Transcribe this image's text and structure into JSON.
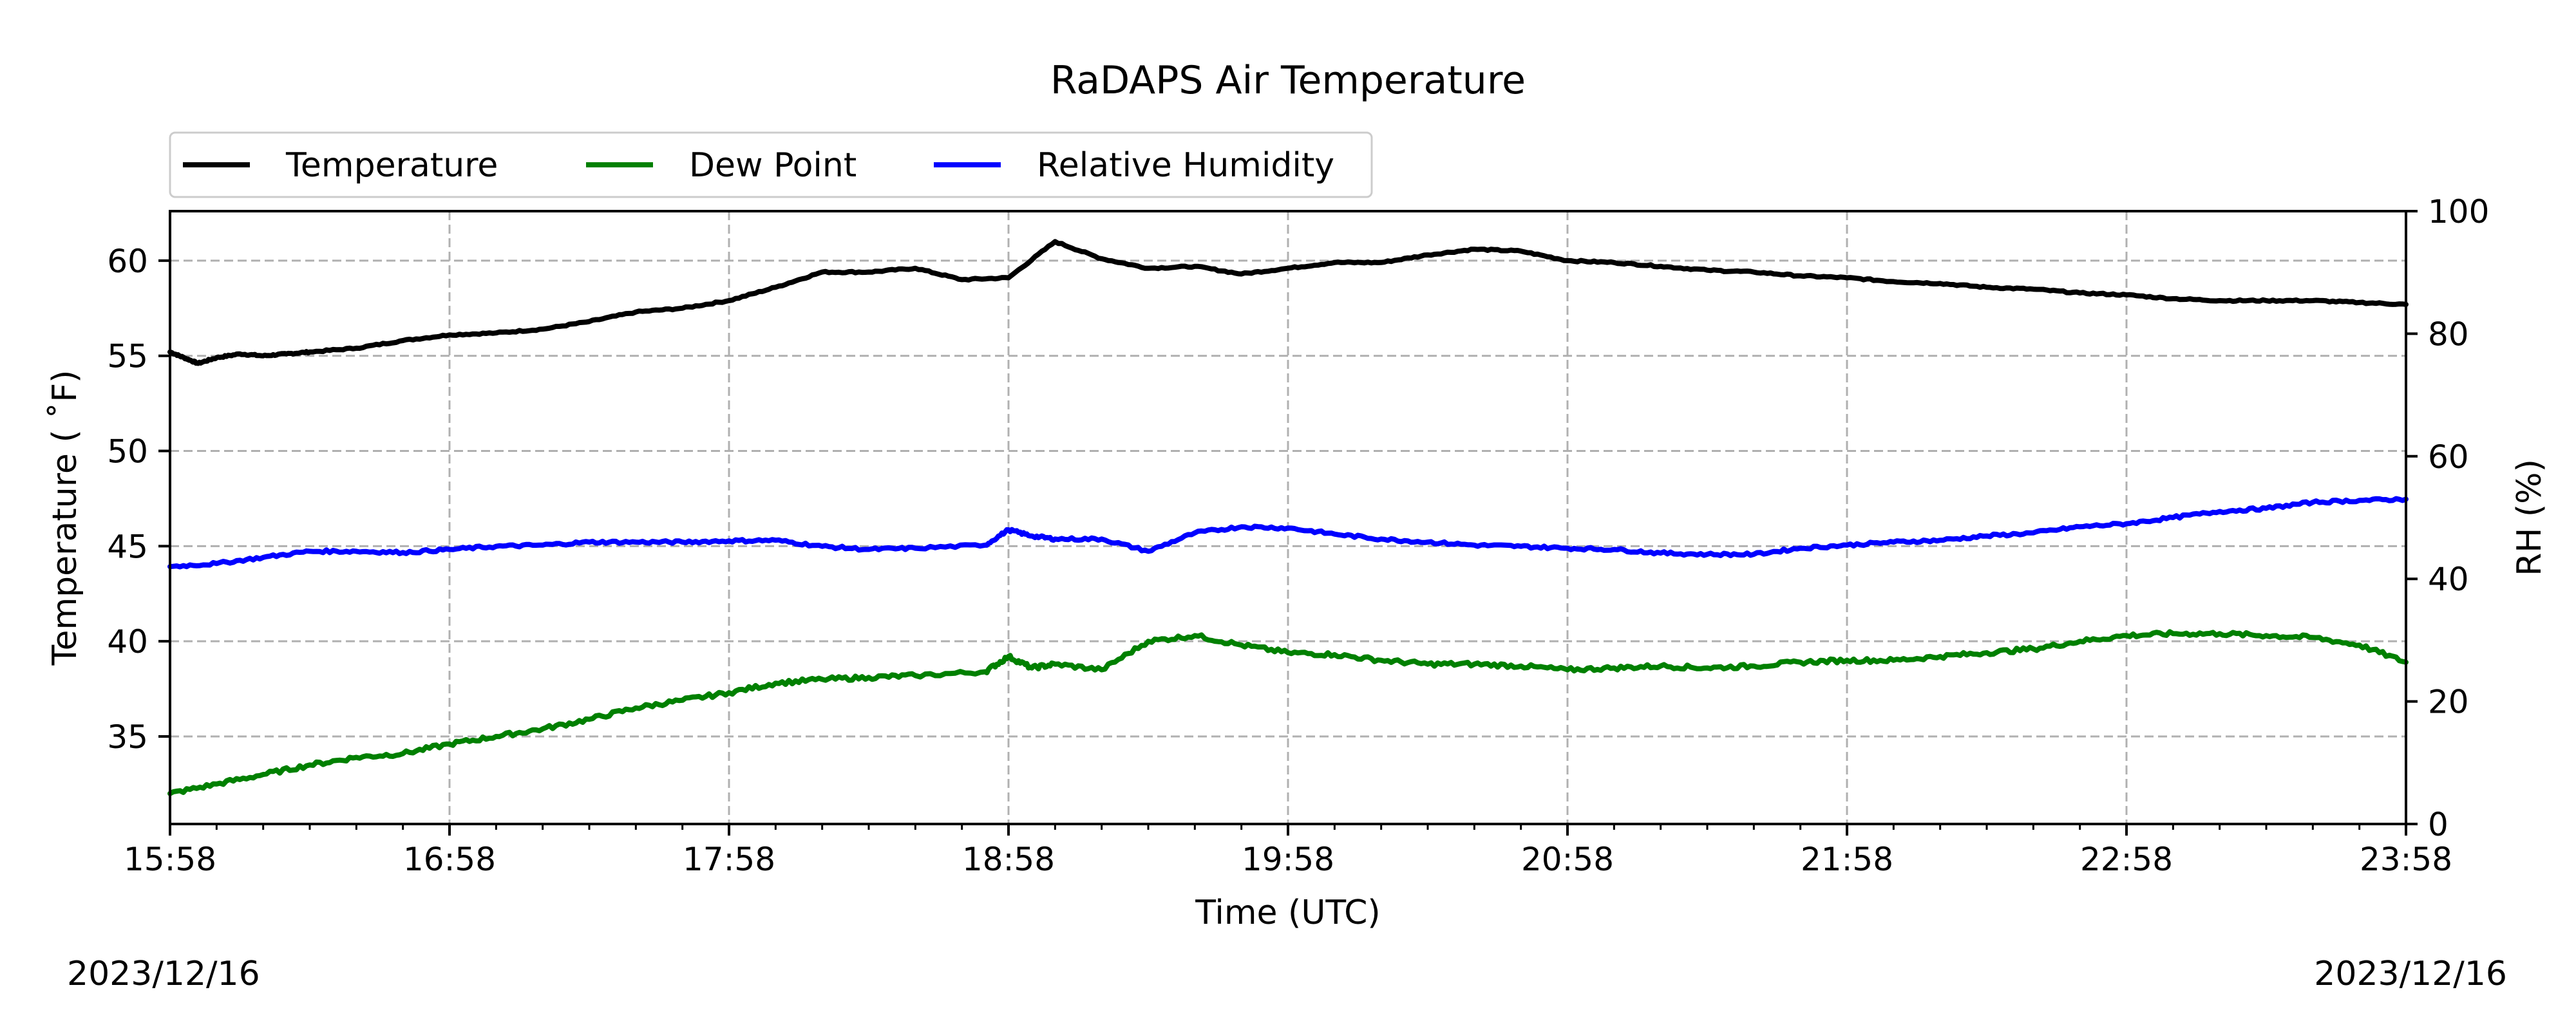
{
  "chart_data": {
    "type": "line",
    "title": "RaDAPS Air Temperature",
    "xlabel": "Time (UTC)",
    "ylabel_left": "Temperature ($^\\circ$F)",
    "ylabel_left_display": "Temperature ( ˚F)",
    "ylabel_right": "RH (%)",
    "x_ticks": [
      "15:58",
      "16:58",
      "17:58",
      "18:58",
      "19:58",
      "20:58",
      "21:58",
      "22:58",
      "23:58"
    ],
    "x_range_minutes": [
      0,
      480
    ],
    "y_left_ticks": [
      35,
      40,
      45,
      50,
      55,
      60
    ],
    "y_left_lim": [
      30.4,
      62.6
    ],
    "y_right_ticks": [
      0,
      20,
      40,
      60,
      80,
      100
    ],
    "y_right_lim": [
      0,
      100
    ],
    "grid": true,
    "legend_position": "top-left, above plot",
    "date_left": "2023/12/16",
    "date_right": "2023/12/16",
    "series": [
      {
        "name": "Temperature",
        "color": "#000000",
        "axis": "left",
        "x": [
          0,
          3,
          6,
          10,
          15,
          20,
          25,
          30,
          40,
          50,
          60,
          70,
          80,
          90,
          100,
          110,
          120,
          130,
          140,
          150,
          160,
          170,
          180,
          190,
          200,
          210,
          220,
          230,
          240,
          250,
          260,
          270,
          280,
          290,
          300,
          310,
          320,
          330,
          340,
          350,
          360,
          370,
          380,
          390,
          400,
          410,
          420,
          430,
          440,
          450,
          460,
          470,
          480
        ],
        "y": [
          55.2,
          54.9,
          54.6,
          54.9,
          55.1,
          55.0,
          55.1,
          55.2,
          55.4,
          55.8,
          56.1,
          56.2,
          56.4,
          56.8,
          57.3,
          57.5,
          57.9,
          58.6,
          59.4,
          59.4,
          59.6,
          59.0,
          59.1,
          61.0,
          60.1,
          59.6,
          59.7,
          59.3,
          59.6,
          59.9,
          59.9,
          60.3,
          60.6,
          60.5,
          60.0,
          59.9,
          59.7,
          59.5,
          59.4,
          59.2,
          59.1,
          58.9,
          58.8,
          58.6,
          58.5,
          58.3,
          58.2,
          58.0,
          57.9,
          57.9,
          57.9,
          57.8,
          57.7
        ]
      },
      {
        "name": "Dew Point",
        "color": "#008000",
        "axis": "left",
        "x": [
          0,
          10,
          20,
          30,
          40,
          50,
          60,
          70,
          80,
          90,
          100,
          110,
          120,
          130,
          140,
          150,
          160,
          175,
          180,
          185,
          190,
          200,
          210,
          220,
          230,
          240,
          250,
          260,
          270,
          280,
          290,
          300,
          310,
          320,
          330,
          340,
          350,
          360,
          370,
          380,
          390,
          400,
          410,
          420,
          430,
          440,
          450,
          460,
          470,
          480
        ],
        "y": [
          32.0,
          32.5,
          33.0,
          33.5,
          33.9,
          34.1,
          34.6,
          35.0,
          35.4,
          35.9,
          36.5,
          36.9,
          37.3,
          37.8,
          38.0,
          38.1,
          38.2,
          38.4,
          39.2,
          38.6,
          38.8,
          38.5,
          40.0,
          40.3,
          39.8,
          39.4,
          39.3,
          39.0,
          38.8,
          38.8,
          38.7,
          38.5,
          38.6,
          38.7,
          38.6,
          38.7,
          38.9,
          39.0,
          39.0,
          39.2,
          39.4,
          39.6,
          40.0,
          40.3,
          40.4,
          40.4,
          40.3,
          40.2,
          39.8,
          38.9
        ]
      },
      {
        "name": "Relative Humidity",
        "color": "#0000ff",
        "axis": "right",
        "x": [
          0,
          10,
          20,
          30,
          40,
          50,
          60,
          70,
          80,
          90,
          100,
          110,
          120,
          130,
          140,
          150,
          160,
          175,
          180,
          185,
          190,
          200,
          210,
          220,
          230,
          240,
          250,
          260,
          270,
          280,
          290,
          300,
          310,
          320,
          330,
          340,
          350,
          360,
          370,
          380,
          390,
          400,
          410,
          420,
          430,
          440,
          450,
          460,
          470,
          480
        ],
        "y": [
          42.0,
          42.5,
          43.5,
          44.5,
          44.5,
          44.3,
          44.8,
          45.3,
          45.5,
          46.0,
          46.0,
          46.0,
          46.2,
          46.3,
          45.3,
          44.8,
          45.0,
          45.5,
          48.0,
          47.0,
          46.5,
          46.5,
          44.5,
          47.5,
          48.5,
          48.3,
          47.3,
          46.5,
          46.0,
          45.5,
          45.3,
          45.0,
          44.8,
          44.2,
          44.0,
          44.0,
          45.0,
          45.5,
          46.0,
          46.3,
          47.0,
          47.5,
          48.5,
          49.0,
          50.0,
          51.0,
          51.5,
          52.5,
          52.8,
          53.0
        ]
      }
    ]
  }
}
